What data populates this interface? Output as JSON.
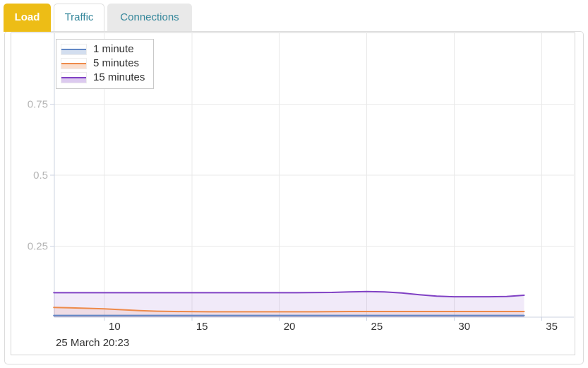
{
  "tabs": [
    {
      "label": "Load",
      "active": true
    },
    {
      "label": "Traffic",
      "active": false
    },
    {
      "label": "Connections",
      "active": false
    }
  ],
  "colors": {
    "active_tab_bg": "#edbd16",
    "active_tab_text": "#ffffff",
    "tab_text": "#35879b",
    "inactive_tab_bg": "#e9e9e9",
    "panel_border": "#dcdcdc",
    "chart_border": "#d6d6d6",
    "grid": "#e9e9e9",
    "axis": "#ccd3e2",
    "x_label_color": "#333333",
    "y_label_color": "#b5b5b5",
    "legend_border": "#c9c9c9"
  },
  "chart_data": {
    "type": "area",
    "title": "",
    "xlabel": "",
    "ylabel": "",
    "x_ticks": [
      10,
      15,
      20,
      25,
      30,
      35
    ],
    "y_ticks": [
      0.25,
      0.5,
      0.75
    ],
    "xlim": [
      7.1,
      36.9
    ],
    "ylim": [
      0,
      1
    ],
    "grid": true,
    "legend_position": "top-left",
    "x_axis_note": "25 March 20:23",
    "series": [
      {
        "name": "1 minute",
        "color": "#6287c5",
        "fill_opacity": 0.3,
        "points": [
          [
            7.1,
            0.006
          ],
          [
            10,
            0.006
          ],
          [
            14,
            0.006
          ],
          [
            18,
            0.006
          ],
          [
            22,
            0.006
          ],
          [
            26,
            0.006
          ],
          [
            30,
            0.006
          ],
          [
            34,
            0.006
          ]
        ]
      },
      {
        "name": "5 minutes",
        "color": "#ee8a4a",
        "fill_opacity": 0.13,
        "points": [
          [
            7.1,
            0.034
          ],
          [
            8,
            0.033
          ],
          [
            9,
            0.031
          ],
          [
            10,
            0.029
          ],
          [
            11,
            0.026
          ],
          [
            12,
            0.023
          ],
          [
            13,
            0.021
          ],
          [
            14,
            0.02
          ],
          [
            16,
            0.019
          ],
          [
            18,
            0.019
          ],
          [
            20,
            0.019
          ],
          [
            22,
            0.019
          ],
          [
            24,
            0.02
          ],
          [
            26,
            0.02
          ],
          [
            28,
            0.02
          ],
          [
            30,
            0.02
          ],
          [
            32,
            0.02
          ],
          [
            34,
            0.02
          ]
        ]
      },
      {
        "name": "15 minutes",
        "color": "#8041c4",
        "fill_opacity": 0.11,
        "points": [
          [
            7.1,
            0.086
          ],
          [
            9,
            0.086
          ],
          [
            11,
            0.086
          ],
          [
            13,
            0.086
          ],
          [
            15,
            0.086
          ],
          [
            17,
            0.086
          ],
          [
            19,
            0.086
          ],
          [
            21,
            0.086
          ],
          [
            23,
            0.087
          ],
          [
            24,
            0.089
          ],
          [
            25,
            0.09
          ],
          [
            26,
            0.089
          ],
          [
            27,
            0.085
          ],
          [
            28,
            0.079
          ],
          [
            29,
            0.074
          ],
          [
            30,
            0.072
          ],
          [
            31,
            0.072
          ],
          [
            32,
            0.072
          ],
          [
            33,
            0.073
          ],
          [
            33.5,
            0.075
          ],
          [
            34,
            0.077
          ]
        ]
      }
    ]
  }
}
